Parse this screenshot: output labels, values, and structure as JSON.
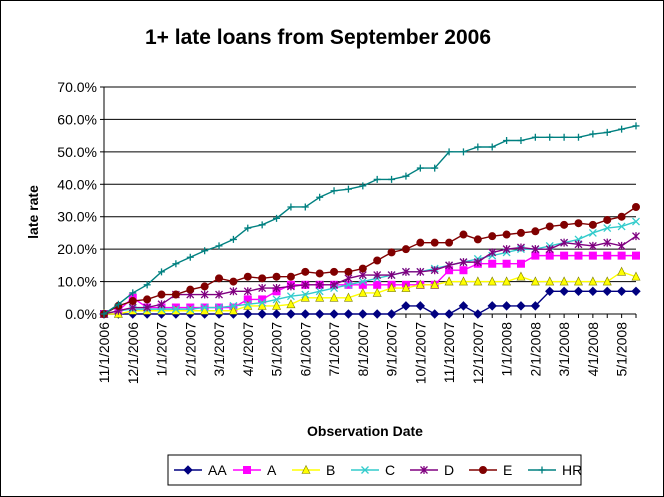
{
  "chart_data": {
    "type": "line",
    "title": "1+ late loans from September 2006",
    "xlabel": "Observation Date",
    "ylabel": "late rate",
    "ylim": [
      0,
      0.7
    ],
    "y_ticks": [
      "0.0%",
      "10.0%",
      "20.0%",
      "30.0%",
      "40.0%",
      "50.0%",
      "60.0%",
      "70.0%"
    ],
    "x_ticks": [
      "11/1/2006",
      "12/1/2006",
      "1/1/2007",
      "2/1/2007",
      "3/1/2007",
      "4/1/2007",
      "5/1/2007",
      "6/1/2007",
      "7/1/2007",
      "8/1/2007",
      "9/1/2007",
      "10/1/2007",
      "11/1/2007",
      "12/1/2007",
      "1/1/2008",
      "2/1/2008",
      "3/1/2008",
      "4/1/2008",
      "5/1/2008"
    ],
    "grid": "horizontal",
    "legend_position": "bottom",
    "x": [
      "11/1/2006",
      "11/15/2006",
      "12/1/2006",
      "12/15/2006",
      "1/1/2007",
      "1/15/2007",
      "2/1/2007",
      "2/15/2007",
      "3/1/2007",
      "3/15/2007",
      "4/1/2007",
      "4/15/2007",
      "5/1/2007",
      "5/15/2007",
      "6/1/2007",
      "6/15/2007",
      "7/1/2007",
      "7/15/2007",
      "8/1/2007",
      "8/15/2007",
      "9/1/2007",
      "9/15/2007",
      "10/1/2007",
      "10/15/2007",
      "11/1/2007",
      "11/15/2007",
      "12/1/2007",
      "12/15/2007",
      "1/1/2008",
      "1/15/2008",
      "2/1/2008",
      "2/15/2008",
      "3/1/2008",
      "3/15/2008",
      "4/1/2008",
      "4/15/2008",
      "5/1/2008",
      "5/15/2008"
    ],
    "series": [
      {
        "name": "AA",
        "color": "#000080",
        "marker": "diamond",
        "values": [
          0.0,
          0.0,
          0.0,
          0.0,
          0.0,
          0.0,
          0.0,
          0.0,
          0.0,
          0.0,
          0.0,
          0.0,
          0.0,
          0.0,
          0.0,
          0.0,
          0.0,
          0.0,
          0.0,
          0.0,
          0.0,
          0.025,
          0.025,
          0.0,
          0.0,
          0.025,
          0.0,
          0.025,
          0.025,
          0.025,
          0.025,
          0.07,
          0.07,
          0.07,
          0.07,
          0.07,
          0.07,
          0.07
        ]
      },
      {
        "name": "A",
        "color": "#ff00ff",
        "marker": "square",
        "values": [
          0.0,
          0.01,
          0.05,
          0.02,
          0.02,
          0.02,
          0.02,
          0.02,
          0.02,
          0.02,
          0.045,
          0.045,
          0.07,
          0.09,
          0.09,
          0.09,
          0.09,
          0.09,
          0.09,
          0.09,
          0.09,
          0.09,
          0.09,
          0.09,
          0.135,
          0.135,
          0.155,
          0.155,
          0.155,
          0.155,
          0.18,
          0.18,
          0.18,
          0.18,
          0.18,
          0.18,
          0.18,
          0.18
        ]
      },
      {
        "name": "B",
        "color": "#ffff00",
        "marker": "triangle",
        "values": [
          0.0,
          0.0,
          0.01,
          0.01,
          0.01,
          0.01,
          0.01,
          0.01,
          0.01,
          0.01,
          0.025,
          0.025,
          0.025,
          0.03,
          0.05,
          0.05,
          0.05,
          0.05,
          0.065,
          0.065,
          0.08,
          0.08,
          0.09,
          0.09,
          0.1,
          0.1,
          0.1,
          0.1,
          0.1,
          0.115,
          0.1,
          0.1,
          0.1,
          0.1,
          0.1,
          0.1,
          0.13,
          0.115
        ]
      },
      {
        "name": "C",
        "color": "#33cccc",
        "marker": "x",
        "values": [
          0.0,
          0.01,
          0.015,
          0.015,
          0.015,
          0.015,
          0.015,
          0.02,
          0.02,
          0.025,
          0.03,
          0.035,
          0.045,
          0.055,
          0.06,
          0.07,
          0.08,
          0.09,
          0.1,
          0.11,
          0.12,
          0.13,
          0.13,
          0.14,
          0.15,
          0.16,
          0.17,
          0.18,
          0.19,
          0.2,
          0.2,
          0.21,
          0.22,
          0.23,
          0.25,
          0.265,
          0.27,
          0.285
        ]
      },
      {
        "name": "D",
        "color": "#800080",
        "marker": "star",
        "values": [
          0.0,
          0.01,
          0.02,
          0.02,
          0.03,
          0.06,
          0.06,
          0.06,
          0.06,
          0.07,
          0.07,
          0.08,
          0.08,
          0.085,
          0.09,
          0.09,
          0.09,
          0.11,
          0.12,
          0.12,
          0.12,
          0.13,
          0.13,
          0.135,
          0.15,
          0.16,
          0.16,
          0.19,
          0.2,
          0.205,
          0.2,
          0.2,
          0.22,
          0.215,
          0.21,
          0.22,
          0.21,
          0.24
        ]
      },
      {
        "name": "E",
        "color": "#800000",
        "marker": "circle",
        "values": [
          0.0,
          0.025,
          0.04,
          0.045,
          0.06,
          0.06,
          0.075,
          0.085,
          0.11,
          0.1,
          0.115,
          0.11,
          0.115,
          0.115,
          0.13,
          0.125,
          0.13,
          0.13,
          0.14,
          0.165,
          0.19,
          0.2,
          0.22,
          0.22,
          0.22,
          0.245,
          0.23,
          0.24,
          0.245,
          0.25,
          0.255,
          0.27,
          0.275,
          0.28,
          0.275,
          0.29,
          0.3,
          0.33
        ]
      },
      {
        "name": "HR",
        "color": "#008080",
        "marker": "plus",
        "values": [
          0.0,
          0.03,
          0.065,
          0.09,
          0.13,
          0.155,
          0.175,
          0.195,
          0.21,
          0.23,
          0.265,
          0.275,
          0.295,
          0.33,
          0.33,
          0.36,
          0.38,
          0.385,
          0.395,
          0.415,
          0.415,
          0.425,
          0.45,
          0.45,
          0.5,
          0.5,
          0.515,
          0.515,
          0.535,
          0.535,
          0.545,
          0.545,
          0.545,
          0.545,
          0.555,
          0.56,
          0.57,
          0.58
        ]
      }
    ]
  }
}
